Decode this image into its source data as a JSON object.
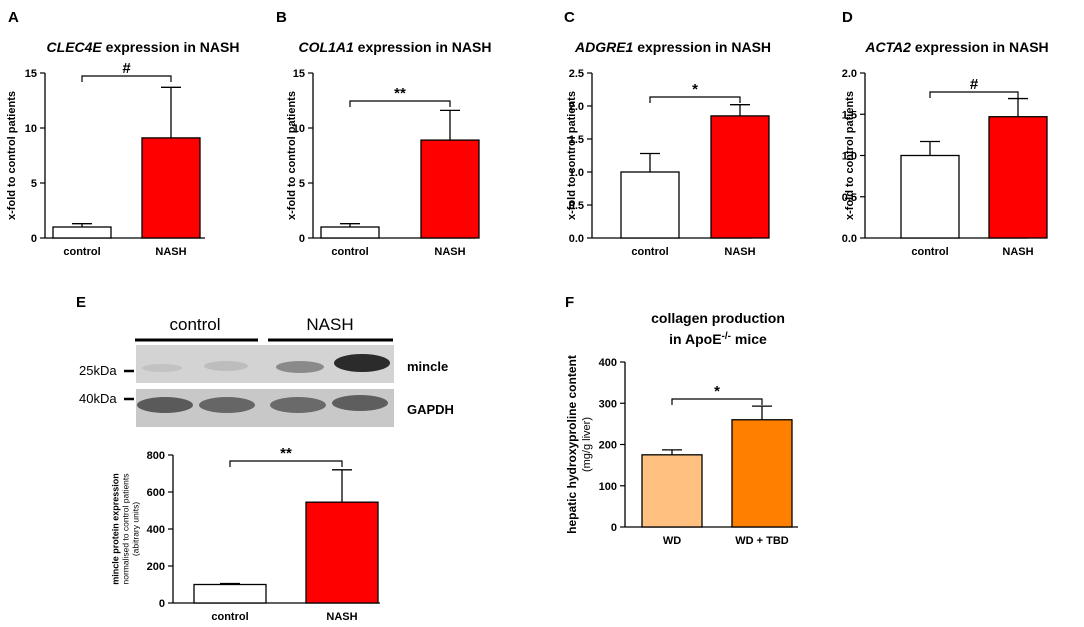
{
  "chart_data": [
    {
      "panel": "A",
      "type": "bar",
      "title_italic": "CLEC4E",
      "title_rest": " expression in NASH",
      "ylabel": "x-fold to control patients",
      "categories": [
        "control",
        "NASH"
      ],
      "values": [
        1.0,
        9.1
      ],
      "errors": [
        0.3,
        4.6
      ],
      "colors": [
        "#ffffff",
        "#ff0000"
      ],
      "ylim": [
        0,
        15
      ],
      "yticks": [
        "0",
        "5",
        "10",
        "15"
      ],
      "ytick_values": [
        0,
        5,
        10,
        15
      ],
      "significance": "#"
    },
    {
      "panel": "B",
      "type": "bar",
      "title_italic": "COL1A1",
      "title_rest": " expression in NASH",
      "ylabel": "x-fold to control patients",
      "categories": [
        "control",
        "NASH"
      ],
      "values": [
        1.0,
        8.9
      ],
      "errors": [
        0.3,
        2.7
      ],
      "colors": [
        "#ffffff",
        "#ff0000"
      ],
      "ylim": [
        0,
        15
      ],
      "yticks": [
        "0",
        "5",
        "10",
        "15"
      ],
      "ytick_values": [
        0,
        5,
        10,
        15
      ],
      "significance": "**"
    },
    {
      "panel": "C",
      "type": "bar",
      "title_italic": "ADGRE1",
      "title_rest": " expression in NASH",
      "ylabel": "x-fold to control patients",
      "categories": [
        "control",
        "NASH"
      ],
      "values": [
        1.0,
        1.85
      ],
      "errors": [
        0.28,
        0.17
      ],
      "colors": [
        "#ffffff",
        "#ff0000"
      ],
      "ylim": [
        0,
        2.5
      ],
      "yticks": [
        "0.0",
        "0.5",
        "1.0",
        "1.5",
        "2.0",
        "2.5"
      ],
      "ytick_values": [
        0,
        0.5,
        1,
        1.5,
        2,
        2.5
      ],
      "significance": "*"
    },
    {
      "panel": "D",
      "type": "bar",
      "title_italic": "ACTA2",
      "title_rest": " expression in NASH",
      "ylabel": "x-fold to control patients",
      "categories": [
        "control",
        "NASH"
      ],
      "values": [
        1.0,
        1.47
      ],
      "errors": [
        0.17,
        0.22
      ],
      "colors": [
        "#ffffff",
        "#ff0000"
      ],
      "ylim": [
        0,
        2.0
      ],
      "yticks": [
        "0.0",
        "0.5",
        "1.0",
        "1.5",
        "2.0"
      ],
      "ytick_values": [
        0,
        0.5,
        1,
        1.5,
        2
      ],
      "significance": "#"
    },
    {
      "panel": "E",
      "type": "bar",
      "ylabel_lines": [
        "mincle protein expression",
        "normalised to control patients",
        "(abitrary units)"
      ],
      "categories": [
        "control",
        "NASH"
      ],
      "values": [
        100,
        545
      ],
      "errors": [
        5,
        175
      ],
      "colors": [
        "#ffffff",
        "#ff0000"
      ],
      "ylim": [
        0,
        800
      ],
      "yticks": [
        "0",
        "200",
        "400",
        "600",
        "800"
      ],
      "ytick_values": [
        0,
        200,
        400,
        600,
        800
      ],
      "significance": "**"
    },
    {
      "panel": "F",
      "type": "bar",
      "title_line1": "collagen production",
      "title_line2_pre": "in ApoE",
      "title_line2_sup": "-/-",
      "title_line2_post": " mice",
      "ylabel_lines": [
        "hepatic hydroxyproline content",
        "(mg/g liver)"
      ],
      "categories": [
        "WD",
        "WD + TBD"
      ],
      "values": [
        175,
        260
      ],
      "errors": [
        12,
        33
      ],
      "colors": [
        "#ffc080",
        "#ff8000"
      ],
      "ylim": [
        0,
        400
      ],
      "yticks": [
        "0",
        "100",
        "200",
        "300",
        "400"
      ],
      "ytick_values": [
        0,
        100,
        200,
        300,
        400
      ],
      "significance": "*"
    }
  ],
  "blot": {
    "groups": [
      "control",
      "NASH"
    ],
    "markers": [
      "25kDa",
      "40kDa"
    ],
    "bands": [
      "mincle",
      "GAPDH"
    ]
  }
}
